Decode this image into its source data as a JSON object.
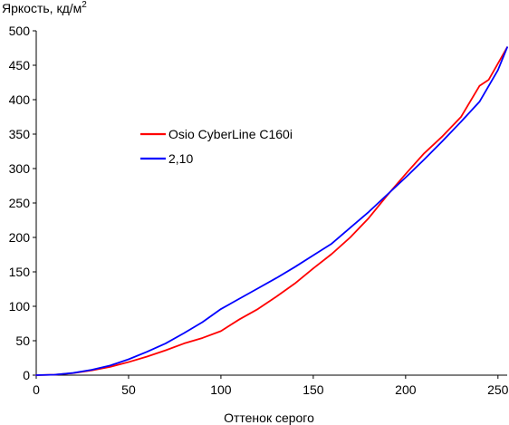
{
  "chart_data": {
    "type": "line",
    "title": "",
    "ylabel": "Яркость, кд/м",
    "ylabel_superscript": "2",
    "xlabel": "Оттенок серого",
    "xlim": [
      0,
      255
    ],
    "ylim": [
      0,
      500
    ],
    "x_ticks": [
      "0",
      "50",
      "100",
      "150",
      "200",
      "250"
    ],
    "y_ticks": [
      "0",
      "50",
      "100",
      "150",
      "200",
      "250",
      "300",
      "350",
      "400",
      "450",
      "500"
    ],
    "grid": false,
    "legend_position": "center-left",
    "series": [
      {
        "name": "Osio CyberLine C160i",
        "color": "#ff0000",
        "x": [
          0,
          10,
          20,
          30,
          40,
          50,
          60,
          70,
          80,
          90,
          100,
          110,
          120,
          130,
          140,
          150,
          160,
          170,
          180,
          190,
          200,
          210,
          220,
          230,
          240,
          245,
          255
        ],
        "y": [
          0,
          0.7,
          3,
          7,
          12,
          19,
          27,
          36,
          46,
          54,
          64,
          81,
          96,
          114,
          133,
          155,
          176,
          200,
          228,
          261,
          292,
          322,
          347,
          375,
          420,
          429,
          476
        ]
      },
      {
        "name": "2,10",
        "color": "#0000ff",
        "x": [
          0,
          10,
          20,
          30,
          40,
          50,
          60,
          70,
          80,
          90,
          100,
          110,
          120,
          130,
          140,
          150,
          160,
          170,
          180,
          190,
          200,
          210,
          220,
          230,
          240,
          250,
          255
        ],
        "y": [
          0,
          0.7,
          3.2,
          7.7,
          14,
          23,
          34,
          46,
          61,
          77,
          96,
          111,
          126,
          141,
          157,
          174,
          191,
          214,
          237,
          262,
          287,
          313,
          340,
          368,
          397,
          443,
          476
        ]
      }
    ]
  }
}
